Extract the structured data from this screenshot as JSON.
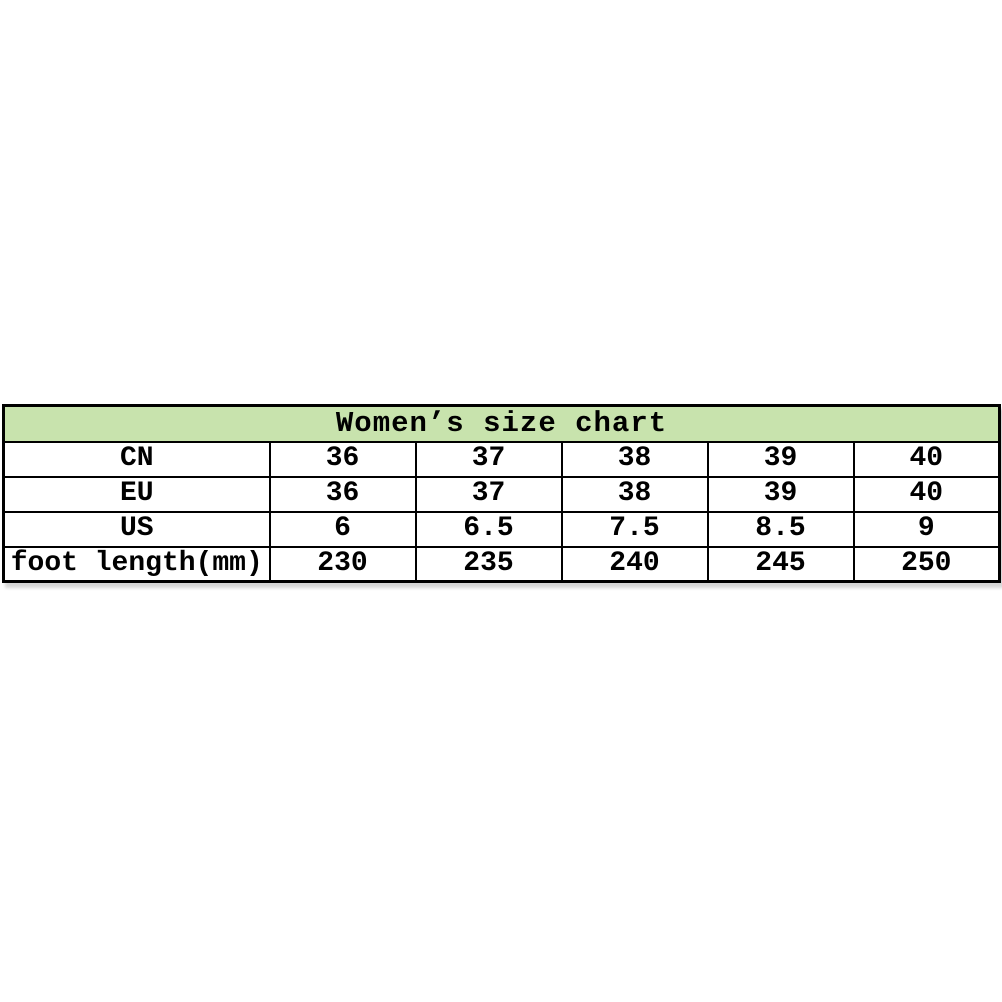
{
  "colors": {
    "header_bg": "#c8e3ad",
    "border": "#000000",
    "text": "#000000",
    "page_bg": "#ffffff"
  },
  "chart_data": {
    "type": "table",
    "title": "Women’s size chart",
    "row_headers": [
      "CN",
      "EU",
      "US",
      "foot length(mm)"
    ],
    "rows": [
      {
        "label": "CN",
        "values": [
          "36",
          "37",
          "38",
          "39",
          "40"
        ]
      },
      {
        "label": "EU",
        "values": [
          "36",
          "37",
          "38",
          "39",
          "40"
        ]
      },
      {
        "label": "US",
        "values": [
          "6",
          "6.5",
          "7.5",
          "8.5",
          "9"
        ]
      },
      {
        "label": "foot length(mm)",
        "values": [
          "230",
          "235",
          "240",
          "245",
          "250"
        ]
      }
    ]
  }
}
